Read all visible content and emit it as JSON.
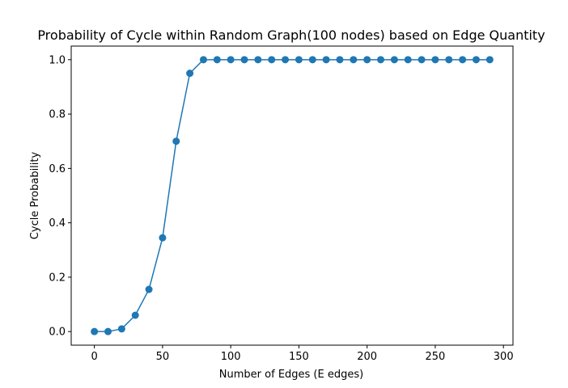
{
  "chart_data": {
    "type": "line",
    "title": "Probability of Cycle within Random Graph(100 nodes) based on Edge Quantity",
    "xlabel": "Number of Edges (E edges)",
    "ylabel": "Cycle Probability",
    "xlim": [
      -17,
      307
    ],
    "ylim": [
      -0.05,
      1.05
    ],
    "xticks": [
      0,
      50,
      100,
      150,
      200,
      250,
      300
    ],
    "yticks": [
      0.0,
      0.2,
      0.4,
      0.6,
      0.8,
      1.0
    ],
    "xtick_labels": [
      "0",
      "50",
      "100",
      "150",
      "200",
      "250",
      "300"
    ],
    "ytick_labels": [
      "0.0",
      "0.2",
      "0.4",
      "0.6",
      "0.8",
      "1.0"
    ],
    "grid": false,
    "legend": "none",
    "color": "#1f77b4",
    "series": [
      {
        "x": [
          0,
          10,
          20,
          30,
          40,
          50,
          60,
          70,
          80,
          90,
          100,
          110,
          120,
          130,
          140,
          150,
          160,
          170,
          180,
          190,
          200,
          210,
          220,
          230,
          240,
          250,
          260,
          270,
          280,
          290
        ],
        "values": [
          0.0,
          0.0,
          0.01,
          0.06,
          0.155,
          0.345,
          0.7,
          0.95,
          1.0,
          1.0,
          1.0,
          1.0,
          1.0,
          1.0,
          1.0,
          1.0,
          1.0,
          1.0,
          1.0,
          1.0,
          1.0,
          1.0,
          1.0,
          1.0,
          1.0,
          1.0,
          1.0,
          1.0,
          1.0,
          1.0
        ]
      }
    ]
  }
}
